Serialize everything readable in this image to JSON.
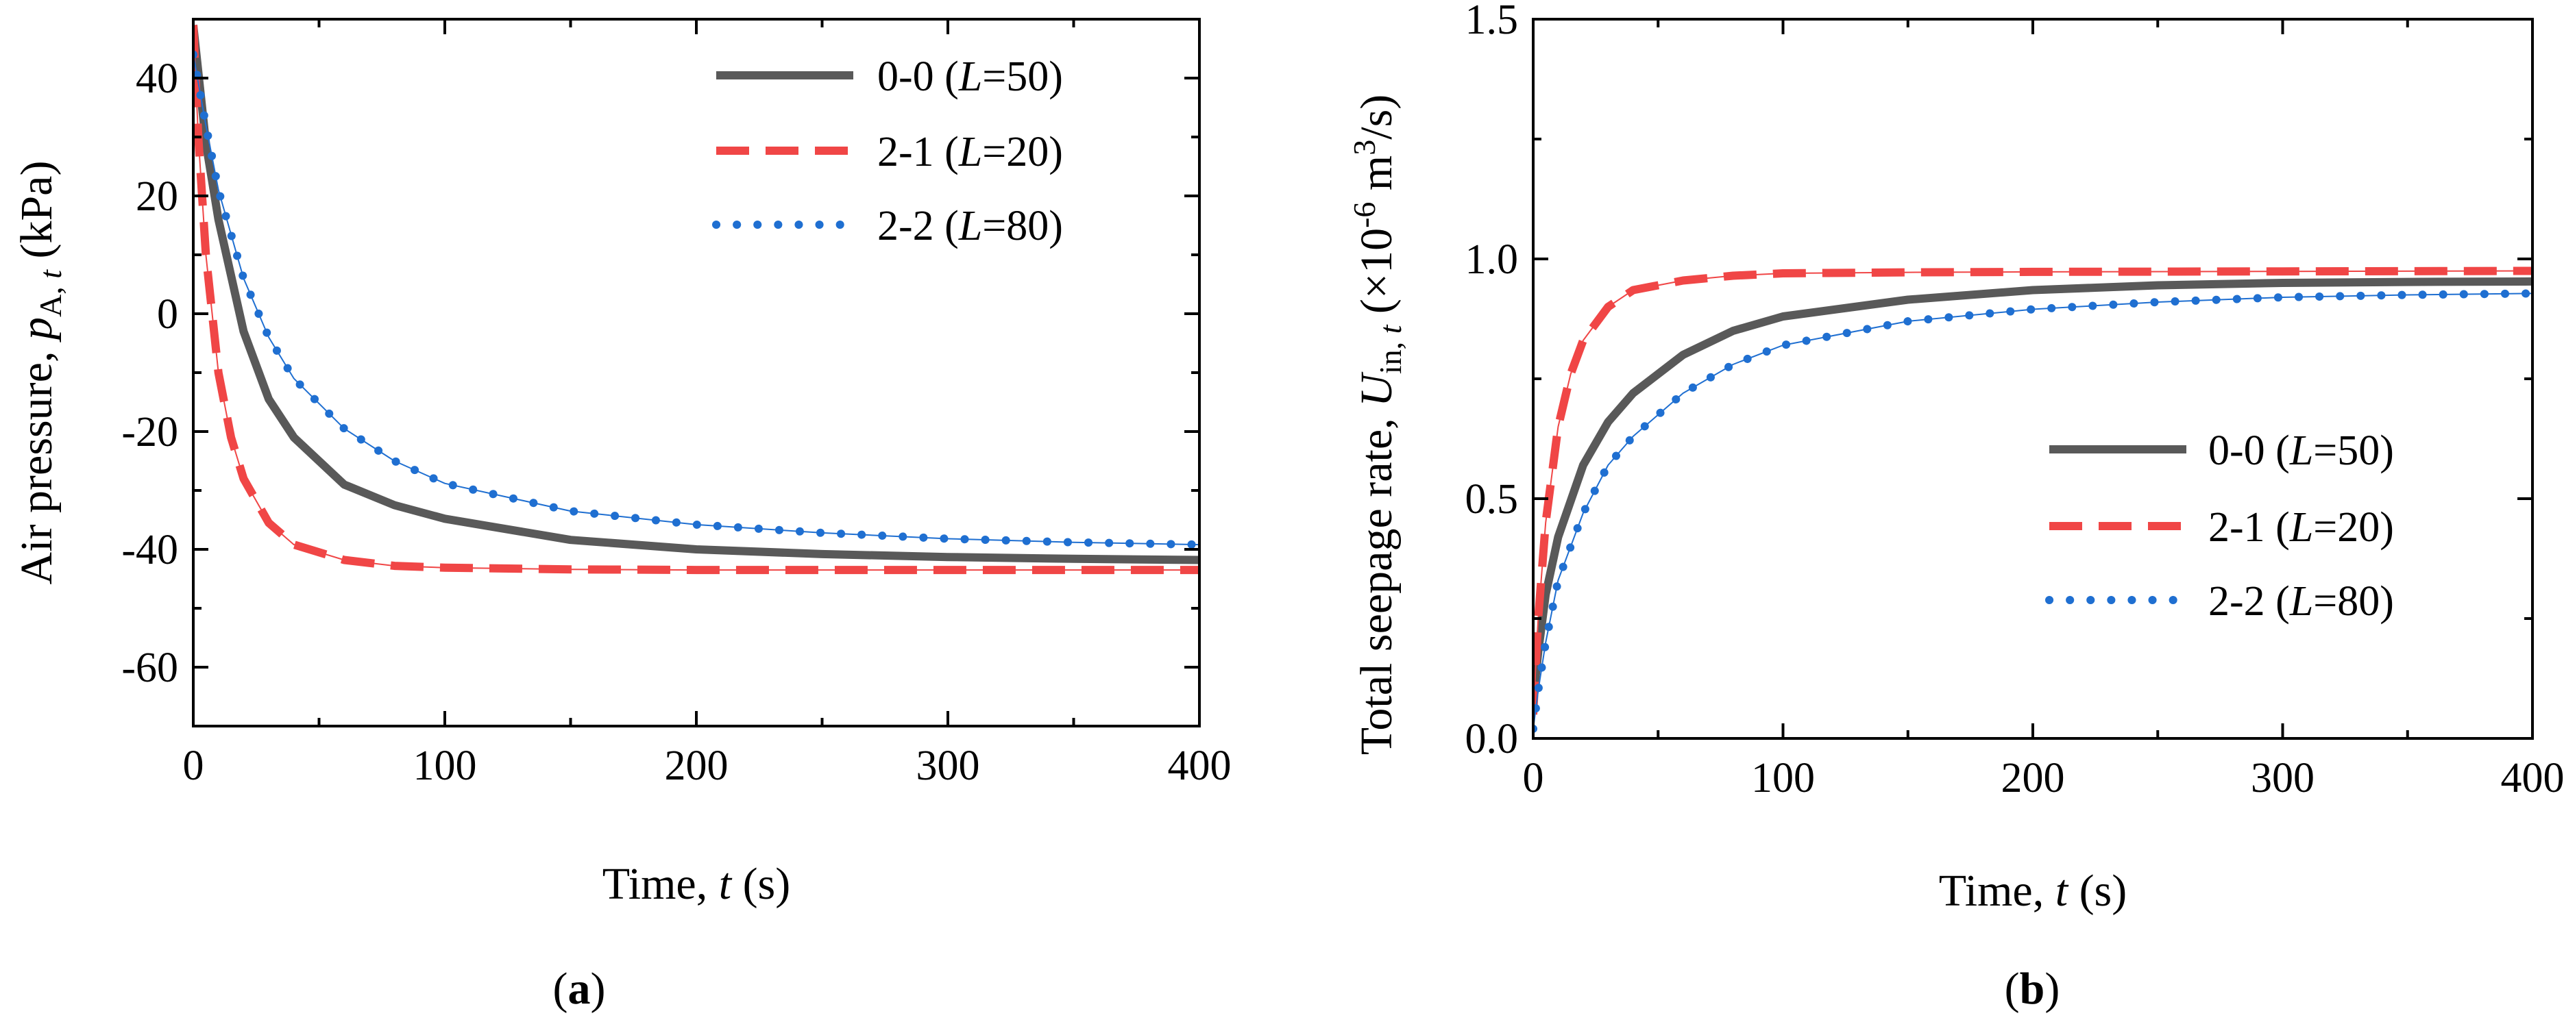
{
  "chart_data": [
    {
      "type": "line",
      "panel_label": "a",
      "xlabel": "Time, t (s)",
      "ylabel": "Air pressure, pA, t (kPa)",
      "xlim": [
        0,
        400
      ],
      "ylim": [
        -70,
        50
      ],
      "xticks": [
        0,
        100,
        200,
        300,
        400
      ],
      "yticks": [
        -60,
        -40,
        -20,
        0,
        20,
        40
      ],
      "legend_position": "top-right",
      "series": [
        {
          "name": "0-0 (L=50)",
          "id": "0-0",
          "L": "50",
          "color": "#595959",
          "style": "solid",
          "x": [
            0,
            5,
            10,
            20,
            30,
            40,
            60,
            80,
            100,
            150,
            200,
            250,
            300,
            350,
            400
          ],
          "y": [
            49,
            29,
            16,
            -3,
            -14.5,
            -21,
            -29,
            -32.5,
            -34.8,
            -38.4,
            -40,
            -40.8,
            -41.3,
            -41.6,
            -41.8
          ]
        },
        {
          "name": "2-1 (L=20)",
          "id": "2-1",
          "L": "20",
          "color": "#f04646",
          "style": "dashed",
          "x": [
            0,
            2,
            5,
            10,
            15,
            20,
            30,
            40,
            60,
            80,
            100,
            150,
            200,
            300,
            400
          ],
          "y": [
            49,
            30,
            10,
            -10,
            -21,
            -28,
            -35.5,
            -39.2,
            -41.8,
            -42.8,
            -43.1,
            -43.4,
            -43.5,
            -43.5,
            -43.5
          ]
        },
        {
          "name": "2-2 (L=80)",
          "id": "2-2",
          "L": "80",
          "color": "#1f6fd1",
          "style": "dotted",
          "x": [
            0,
            5,
            10,
            20,
            30,
            40,
            60,
            80,
            100,
            150,
            200,
            250,
            300,
            350,
            400
          ],
          "y": [
            44,
            32,
            21,
            6,
            -4,
            -11,
            -19.5,
            -25,
            -28.8,
            -33.5,
            -35.8,
            -37.2,
            -38.2,
            -38.8,
            -39.2
          ]
        }
      ]
    },
    {
      "type": "line",
      "panel_label": "b",
      "xlabel": "Time, t (s)",
      "ylabel": "Total seepage rate, Uin, t (×10-6 m3/s)",
      "xlim": [
        0,
        400
      ],
      "ylim": [
        0,
        1.5
      ],
      "xticks": [
        0,
        100,
        200,
        300,
        400
      ],
      "yticks": [
        0.0,
        0.5,
        1.0,
        1.5
      ],
      "legend_position": "center-right",
      "series": [
        {
          "name": "0-0 (L=50)",
          "id": "0-0",
          "L": "50",
          "color": "#595959",
          "style": "solid",
          "x": [
            0,
            2,
            5,
            10,
            20,
            30,
            40,
            60,
            80,
            100,
            150,
            200,
            250,
            300,
            350,
            400
          ],
          "y": [
            0.08,
            0.18,
            0.3,
            0.42,
            0.57,
            0.66,
            0.72,
            0.8,
            0.85,
            0.88,
            0.915,
            0.935,
            0.945,
            0.95,
            0.952,
            0.953
          ]
        },
        {
          "name": "2-1 (L=20)",
          "id": "2-1",
          "L": "20",
          "color": "#f04646",
          "style": "dashed",
          "x": [
            0,
            2,
            5,
            10,
            15,
            20,
            30,
            40,
            60,
            80,
            100,
            150,
            200,
            300,
            400
          ],
          "y": [
            0.05,
            0.25,
            0.45,
            0.65,
            0.76,
            0.83,
            0.9,
            0.935,
            0.955,
            0.965,
            0.97,
            0.972,
            0.973,
            0.974,
            0.975
          ]
        },
        {
          "name": "2-2 (L=80)",
          "id": "2-2",
          "L": "80",
          "color": "#1f6fd1",
          "style": "dotted",
          "x": [
            0,
            2,
            5,
            10,
            20,
            30,
            40,
            60,
            80,
            100,
            150,
            200,
            250,
            300,
            350,
            400
          ],
          "y": [
            0.02,
            0.1,
            0.2,
            0.33,
            0.47,
            0.57,
            0.63,
            0.72,
            0.78,
            0.82,
            0.87,
            0.895,
            0.91,
            0.92,
            0.925,
            0.928
          ]
        }
      ]
    }
  ]
}
